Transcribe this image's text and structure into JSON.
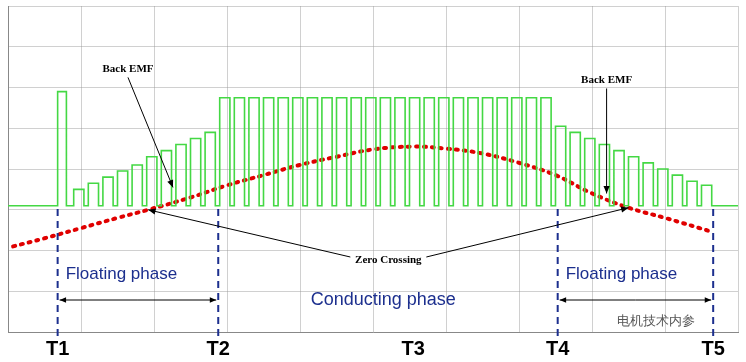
{
  "chart_data": {
    "type": "line",
    "xlim": [
      0,
      10
    ],
    "ylim": [
      0,
      8
    ],
    "xticks": [
      0,
      1,
      2,
      3,
      4,
      5,
      6,
      7,
      8,
      9,
      10
    ],
    "yticks": [
      0,
      1,
      2,
      3,
      4,
      5,
      6,
      7,
      8
    ],
    "grid": true,
    "tick_labels": false,
    "series": [
      {
        "color": "#44d844",
        "line_style": "step",
        "x": [
          0,
          0.68,
          0.8,
          0.9,
          1.04,
          1.1,
          1.24,
          1.3,
          1.44,
          1.5,
          1.64,
          1.7,
          1.84,
          1.9,
          2.04,
          2.1,
          2.24,
          2.3,
          2.44,
          2.5,
          2.64,
          2.7,
          2.84,
          2.9,
          3.04,
          3.1,
          3.24,
          3.3,
          3.44,
          3.5,
          3.64,
          3.7,
          3.84,
          3.9,
          4.04,
          4.1,
          4.24,
          4.3,
          4.44,
          4.5,
          4.64,
          4.7,
          4.84,
          4.9,
          5.04,
          5.1,
          5.24,
          5.3,
          5.44,
          5.5,
          5.64,
          5.7,
          5.84,
          5.9,
          6.04,
          6.1,
          6.24,
          6.3,
          6.44,
          6.5,
          6.64,
          6.7,
          6.84,
          6.9,
          7.04,
          7.1,
          7.24,
          7.3,
          7.44,
          7.5,
          7.64,
          7.7,
          7.84,
          7.9,
          8.04,
          8.1,
          8.24,
          8.3,
          8.44,
          8.5,
          8.64,
          8.7,
          8.84,
          8.9,
          9.04,
          9.1,
          9.24,
          9.3,
          9.44,
          9.5,
          9.64,
          10
        ],
        "values": [
          3.1,
          5.9,
          3.1,
          3.5,
          3.1,
          3.65,
          3.1,
          3.8,
          3.1,
          3.95,
          3.1,
          4.1,
          3.1,
          4.3,
          3.1,
          4.45,
          3.1,
          4.6,
          3.1,
          4.75,
          3.1,
          4.9,
          3.1,
          5.75,
          3.1,
          5.75,
          3.1,
          5.75,
          3.1,
          5.75,
          3.1,
          5.75,
          3.1,
          5.75,
          3.1,
          5.75,
          3.1,
          5.75,
          3.1,
          5.75,
          3.1,
          5.75,
          3.1,
          5.75,
          3.1,
          5.75,
          3.1,
          5.75,
          3.1,
          5.75,
          3.1,
          5.75,
          3.1,
          5.75,
          3.1,
          5.75,
          3.1,
          5.75,
          3.1,
          5.75,
          3.1,
          5.75,
          3.1,
          5.75,
          3.1,
          5.75,
          3.1,
          5.75,
          3.1,
          5.05,
          3.1,
          4.9,
          3.1,
          4.75,
          3.1,
          4.6,
          3.1,
          4.45,
          3.1,
          4.3,
          3.1,
          4.15,
          3.1,
          4.0,
          3.1,
          3.85,
          3.1,
          3.7,
          3.1,
          3.6,
          3.1,
          3.1
        ]
      },
      {
        "color": "#e00000",
        "line_style": "dotted",
        "x": [
          0.07,
          0.5,
          1,
          1.5,
          1.92,
          2.5,
          3,
          3.5,
          4,
          4.5,
          5,
          5.55,
          6,
          6.5,
          7,
          7.5,
          8,
          8.5,
          9,
          9.66
        ],
        "values": [
          2.1,
          2.3,
          2.55,
          2.8,
          3.0,
          3.3,
          3.6,
          3.85,
          4.1,
          4.3,
          4.48,
          4.55,
          4.5,
          4.38,
          4.15,
          3.85,
          3.4,
          3.05,
          2.8,
          2.45
        ]
      }
    ],
    "annotations": [
      {
        "text": "Back EMF",
        "x": 2.26,
        "y": 3.5
      },
      {
        "text": "Back EMF",
        "x": 8.2,
        "y": 3.35
      },
      {
        "text": "Zero Crossing",
        "points": [
          {
            "x": 1.92,
            "y": 3.0
          },
          {
            "x": 8.5,
            "y": 3.05
          }
        ]
      }
    ],
    "phases": [
      {
        "label": "Floating phase",
        "from": 0.68,
        "to": 2.88
      },
      {
        "label": "Conducting phase",
        "x": 5.14
      },
      {
        "label": "Floating phase",
        "from": 7.53,
        "to": 9.66
      }
    ],
    "time_marks": [
      {
        "label": "T1",
        "x": 0.68
      },
      {
        "label": "T2",
        "x": 2.88
      },
      {
        "label": "T3",
        "x": 5.55
      },
      {
        "label": "T4",
        "x": 7.53
      },
      {
        "label": "T5",
        "x": 9.66
      }
    ],
    "watermark": "电机技术内参"
  }
}
